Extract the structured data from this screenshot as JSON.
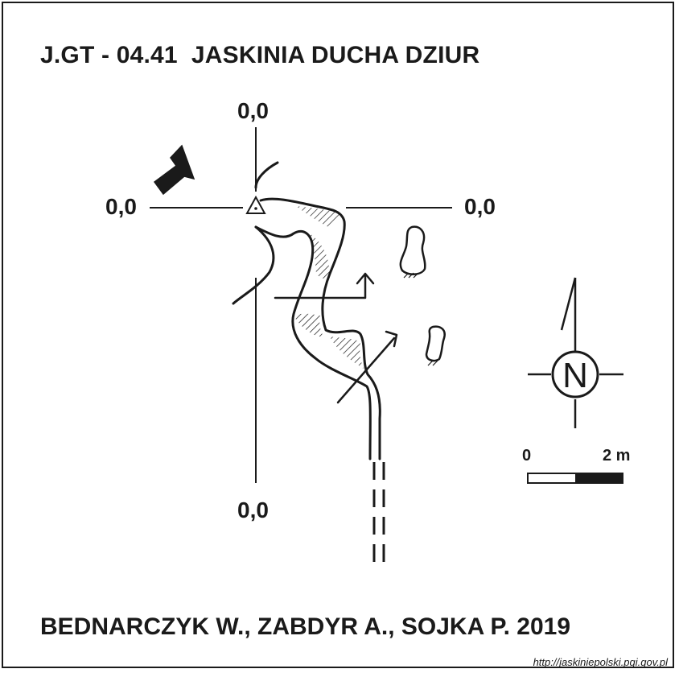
{
  "map": {
    "title": "J.GT - 04.41  JASKINIA DUCHA DZIUR",
    "grid_labels": {
      "top": "0,0",
      "left": "0,0",
      "right": "0,0",
      "bottom": "0,0"
    },
    "north_label": "N",
    "scale": {
      "start_label": "0",
      "end_label": "2 m"
    },
    "authors": "BEDNARCZYK W., ZABDYR A., SOJKA P. 2019",
    "source_url": "http://jaskiniepolski.pgi.gov.pl"
  },
  "colors": {
    "ink": "#1a1a1a",
    "background": "#ffffff"
  }
}
